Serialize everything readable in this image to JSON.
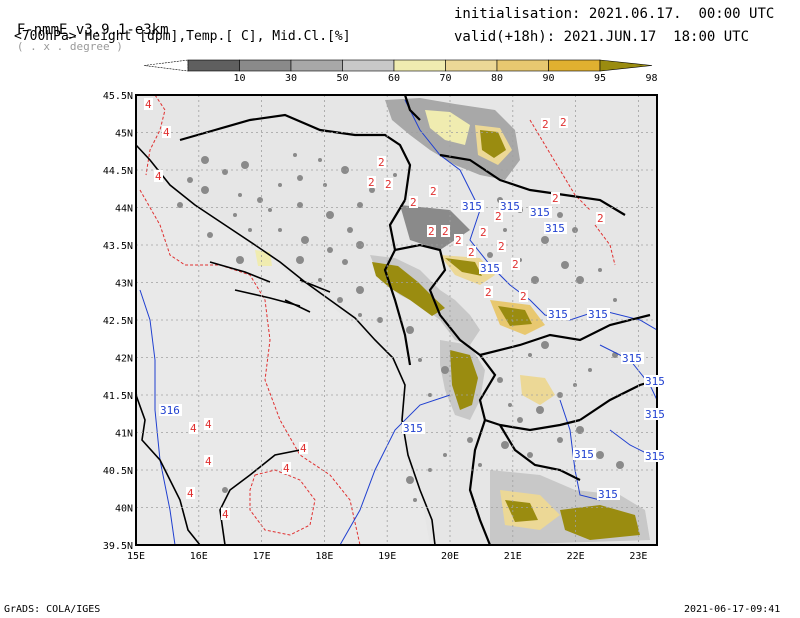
{
  "header": {
    "model": "F-nmmE_v3.9.1-e3km",
    "unit_note": "( . x . degree )",
    "field_desc": "<700hPa> Height [dpm],Temp.[ C], Mid.Cl.[%]",
    "init_label": "initialisation:",
    "init_value": "2021.06.17.  00:00 UTC",
    "valid_label": "valid(+18h):",
    "valid_value": "2021.JUN.17  18:00 UTC"
  },
  "colorbar": {
    "ticks": [
      "10",
      "30",
      "50",
      "60",
      "70",
      "80",
      "90",
      "95",
      "98"
    ],
    "colors": [
      "#5f5f5f",
      "#8a8a8a",
      "#a8a8a8",
      "#c8c8c8",
      "#f0ecb0",
      "#ecd896",
      "#e8c870",
      "#e0b030",
      "#9a8c10"
    ]
  },
  "map": {
    "lat_labels": [
      "45.5N",
      "45N",
      "44.5N",
      "44N",
      "43.5N",
      "43N",
      "42.5N",
      "42N",
      "41.5N",
      "41N",
      "40.5N",
      "40N",
      "39.5N"
    ],
    "lon_labels": [
      "15E",
      "16E",
      "17E",
      "18E",
      "19E",
      "20E",
      "21E",
      "22E",
      "23E"
    ],
    "height_contour_label": "315",
    "height_contour_label_west": "316",
    "temp_label_north": "2",
    "temp_label_south": "4"
  },
  "footer": {
    "left": "GrADS: COLA/IGES",
    "right": "2021-06-17-09:41"
  }
}
